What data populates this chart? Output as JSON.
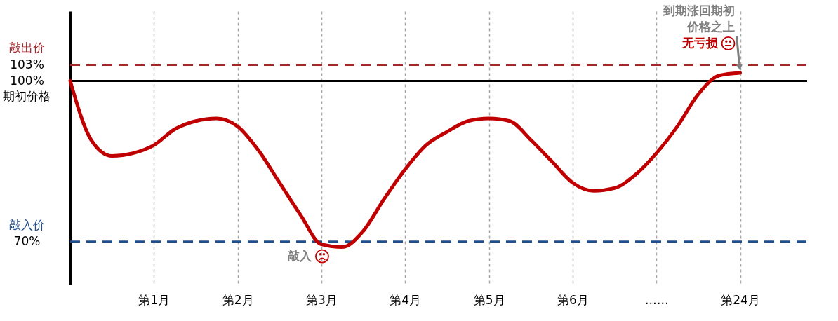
{
  "chart_data": {
    "type": "line",
    "categories": [
      null,
      null,
      null,
      null,
      "第1月",
      null,
      null,
      null,
      "第2月",
      null,
      null,
      null,
      "第3月",
      null,
      null,
      null,
      "第4月",
      null,
      null,
      null,
      "第5月",
      null,
      null,
      null,
      "第6月",
      null,
      null,
      null,
      "……",
      null,
      null,
      null,
      "第24月"
    ],
    "series": [
      {
        "color": "#c00000",
        "values": [
          100,
          89,
          86,
          86.5,
          88,
          91,
          92.5,
          93,
          91.5,
          87,
          81,
          75,
          69.5,
          69,
          72,
          78,
          83.5,
          88,
          90.5,
          92.5,
          93,
          92.5,
          89,
          85,
          81,
          79.5,
          80,
          82.5,
          86.5,
          91.5,
          97.5,
          101,
          101.5
        ]
      }
    ],
    "ylim": [
      62,
      113
    ],
    "yticks": [
      {
        "value": 70,
        "label": "70%"
      },
      {
        "value": 100,
        "label": "100%"
      },
      {
        "value": 103,
        "label": "103%"
      }
    ],
    "grid": "x",
    "ref_lines": [
      {
        "axis": "y",
        "value": 103,
        "label": "敲出价",
        "color": "#a5262b",
        "line_style": "dashed"
      },
      {
        "axis": "y",
        "value": 100,
        "label": "期初价格",
        "color": "#000000",
        "line_style": "solid"
      },
      {
        "axis": "y",
        "value": 70,
        "label": "敲入价",
        "color": "#1f4e8c",
        "line_style": "dashed"
      }
    ],
    "annotations": [
      {
        "text": "敲入",
        "x": "第3月",
        "y": 69.5
      },
      {
        "text": "到期涨回期初价格之上",
        "x": "第24月",
        "y": 101.5
      },
      {
        "text": "无亏损",
        "x": "第24月",
        "y": 101.5
      }
    ]
  }
}
